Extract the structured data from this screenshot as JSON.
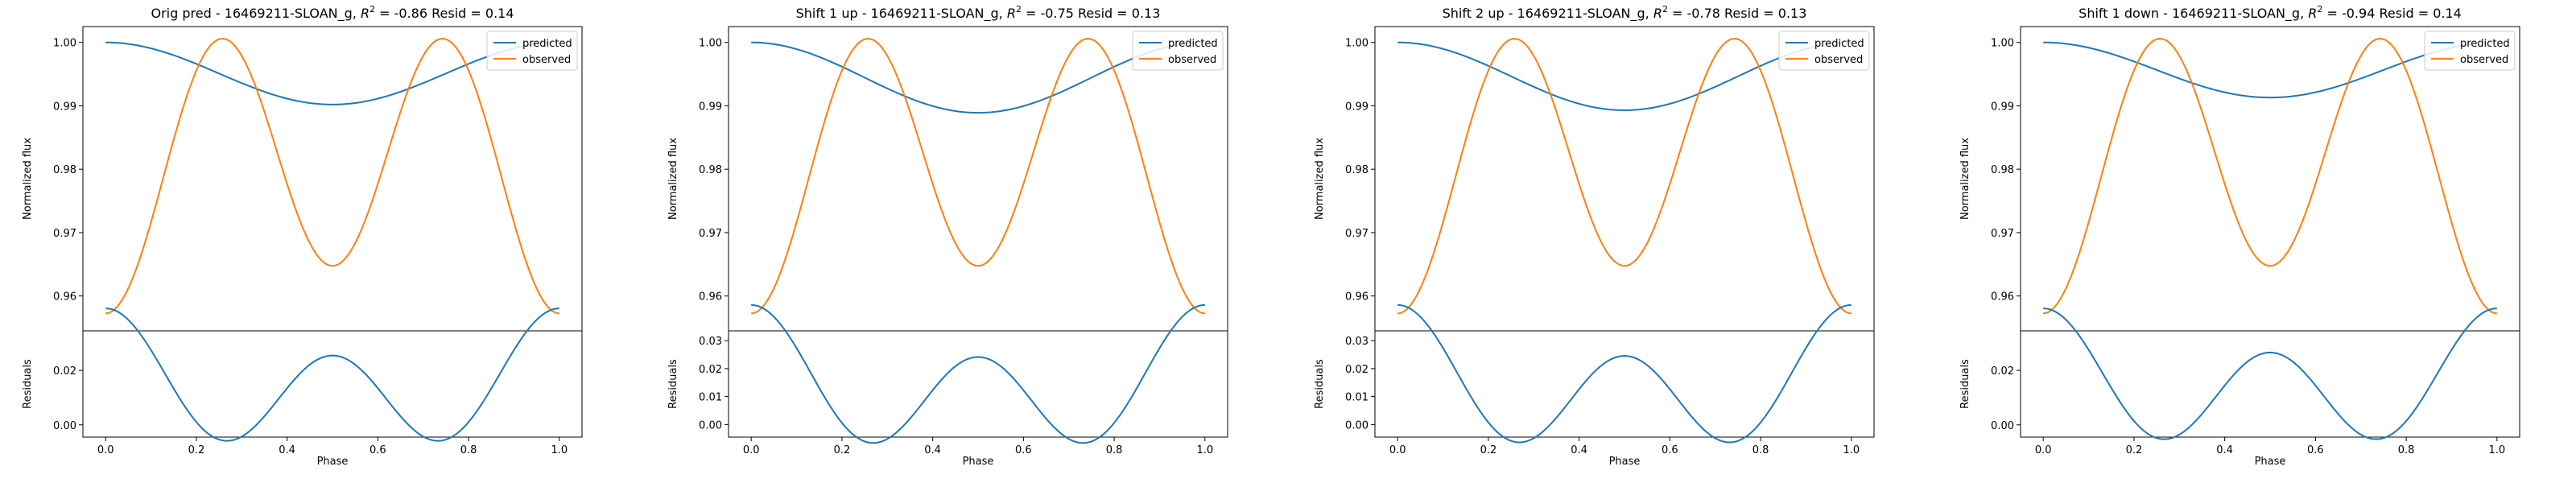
{
  "chart_data": [
    {
      "type": "line",
      "title": "Orig pred - 16469211-SLOAN_g, R² = -0.86 Resid = 0.14",
      "title_parts": {
        "prefix": "Orig pred - 16469211-SLOAN_g, ",
        "r2": "R",
        "sup": "2",
        "suffix": " = -0.86 Resid = 0.14"
      },
      "xlabel": "Phase",
      "ylabel": "Normalized flux",
      "ylabel_resid": "Residuals",
      "xlim": [
        -0.05,
        1.05
      ],
      "ylim": [
        0.9545,
        1.0025
      ],
      "ylim_resid": [
        -0.0045,
        0.0345
      ],
      "xticks": [
        "0.0",
        "0.2",
        "0.4",
        "0.6",
        "0.8",
        "1.0"
      ],
      "yticks": [
        "0.96",
        "0.97",
        "0.98",
        "0.99",
        "1.00"
      ],
      "yticks_resid": [
        "0.00",
        "0.02"
      ],
      "predicted_min": 0.9902,
      "legend": {
        "position": "top-right",
        "entries": [
          "predicted",
          "observed"
        ]
      },
      "series": [
        {
          "name": "predicted",
          "color": "#1f77b4",
          "curve": "predicted"
        },
        {
          "name": "observed",
          "color": "#ff7f0e",
          "curve": "observed"
        }
      ]
    },
    {
      "type": "line",
      "title": "Shift 1 up - 16469211-SLOAN_g, R² = -0.75 Resid = 0.13",
      "title_parts": {
        "prefix": "Shift 1 up - 16469211-SLOAN_g, ",
        "r2": "R",
        "sup": "2",
        "suffix": " = -0.75 Resid = 0.13"
      },
      "xlabel": "Phase",
      "ylabel": "Normalized flux",
      "ylabel_resid": "Residuals",
      "xlim": [
        -0.05,
        1.05
      ],
      "ylim": [
        0.9545,
        1.0025
      ],
      "ylim_resid": [
        -0.0045,
        0.0335
      ],
      "xticks": [
        "0.0",
        "0.2",
        "0.4",
        "0.6",
        "0.8",
        "1.0"
      ],
      "yticks": [
        "0.96",
        "0.97",
        "0.98",
        "0.99",
        "1.00"
      ],
      "yticks_resid": [
        "0.00",
        "0.01",
        "0.02",
        "0.03"
      ],
      "predicted_min": 0.9889,
      "legend": {
        "position": "top-right",
        "entries": [
          "predicted",
          "observed"
        ]
      },
      "series": [
        {
          "name": "predicted",
          "color": "#1f77b4",
          "curve": "predicted"
        },
        {
          "name": "observed",
          "color": "#ff7f0e",
          "curve": "observed"
        }
      ]
    },
    {
      "type": "line",
      "title": "Shift 2 up - 16469211-SLOAN_g, R² = -0.78 Resid = 0.13",
      "title_parts": {
        "prefix": "Shift 2 up - 16469211-SLOAN_g, ",
        "r2": "R",
        "sup": "2",
        "suffix": " = -0.78 Resid = 0.13"
      },
      "xlabel": "Phase",
      "ylabel": "Normalized flux",
      "ylabel_resid": "Residuals",
      "xlim": [
        -0.05,
        1.05
      ],
      "ylim": [
        0.9545,
        1.0025
      ],
      "ylim_resid": [
        -0.0045,
        0.0335
      ],
      "xticks": [
        "0.0",
        "0.2",
        "0.4",
        "0.6",
        "0.8",
        "1.0"
      ],
      "yticks": [
        "0.96",
        "0.97",
        "0.98",
        "0.99",
        "1.00"
      ],
      "yticks_resid": [
        "0.00",
        "0.01",
        "0.02",
        "0.03"
      ],
      "predicted_min": 0.9893,
      "legend": {
        "position": "top-right",
        "entries": [
          "predicted",
          "observed"
        ]
      },
      "series": [
        {
          "name": "predicted",
          "color": "#1f77b4",
          "curve": "predicted"
        },
        {
          "name": "observed",
          "color": "#ff7f0e",
          "curve": "observed"
        }
      ]
    },
    {
      "type": "line",
      "title": "Shift 1 down - 16469211-SLOAN_g, R² = -0.94 Resid = 0.14",
      "title_parts": {
        "prefix": "Shift 1 down - 16469211-SLOAN_g, ",
        "r2": "R",
        "sup": "2",
        "suffix": " = -0.94 Resid = 0.14"
      },
      "xlabel": "Phase",
      "ylabel": "Normalized flux",
      "ylabel_resid": "Residuals",
      "xlim": [
        -0.05,
        1.05
      ],
      "ylim": [
        0.9545,
        1.0025
      ],
      "ylim_resid": [
        -0.0045,
        0.0345
      ],
      "xticks": [
        "0.0",
        "0.2",
        "0.4",
        "0.6",
        "0.8",
        "1.0"
      ],
      "yticks": [
        "0.96",
        "0.97",
        "0.98",
        "0.99",
        "1.00"
      ],
      "yticks_resid": [
        "0.00",
        "0.02"
      ],
      "predicted_min": 0.9913,
      "legend": {
        "position": "top-right",
        "entries": [
          "predicted",
          "observed"
        ]
      },
      "series": [
        {
          "name": "predicted",
          "color": "#1f77b4",
          "curve": "predicted"
        },
        {
          "name": "observed",
          "color": "#ff7f0e",
          "curve": "observed"
        }
      ]
    }
  ]
}
